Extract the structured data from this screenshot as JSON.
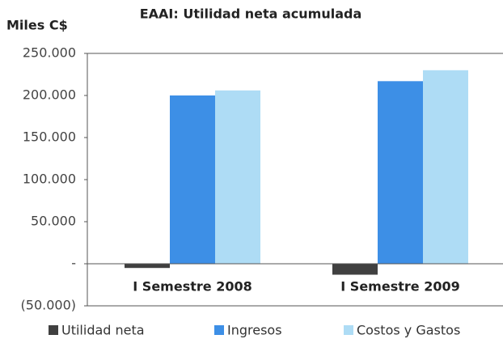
{
  "chart_data": {
    "type": "bar",
    "title": "EAAI: Utilidad neta acumulada",
    "y_label": "Miles C$",
    "categories": [
      "I Semestre 2008",
      "I Semestre 2009"
    ],
    "series": [
      {
        "name": "Utilidad neta",
        "color": "#404040",
        "values": [
          -5000,
          -13000
        ]
      },
      {
        "name": "Ingresos",
        "color": "#3d8fe6",
        "values": [
          200000,
          217000
        ]
      },
      {
        "name": "Costos y Gastos",
        "color": "#aedcf5",
        "values": [
          206000,
          230000
        ]
      }
    ],
    "ylim": [
      -50000,
      250000
    ],
    "yticks": [
      {
        "value": -50000,
        "label": "(50.000)"
      },
      {
        "value": 0,
        "label": "-"
      },
      {
        "value": 50000,
        "label": "50.000"
      },
      {
        "value": 100000,
        "label": "100.000"
      },
      {
        "value": 150000,
        "label": "150.000"
      },
      {
        "value": 200000,
        "label": "200.000"
      },
      {
        "value": 250000,
        "label": "250.000"
      }
    ],
    "legend": "bottom"
  }
}
